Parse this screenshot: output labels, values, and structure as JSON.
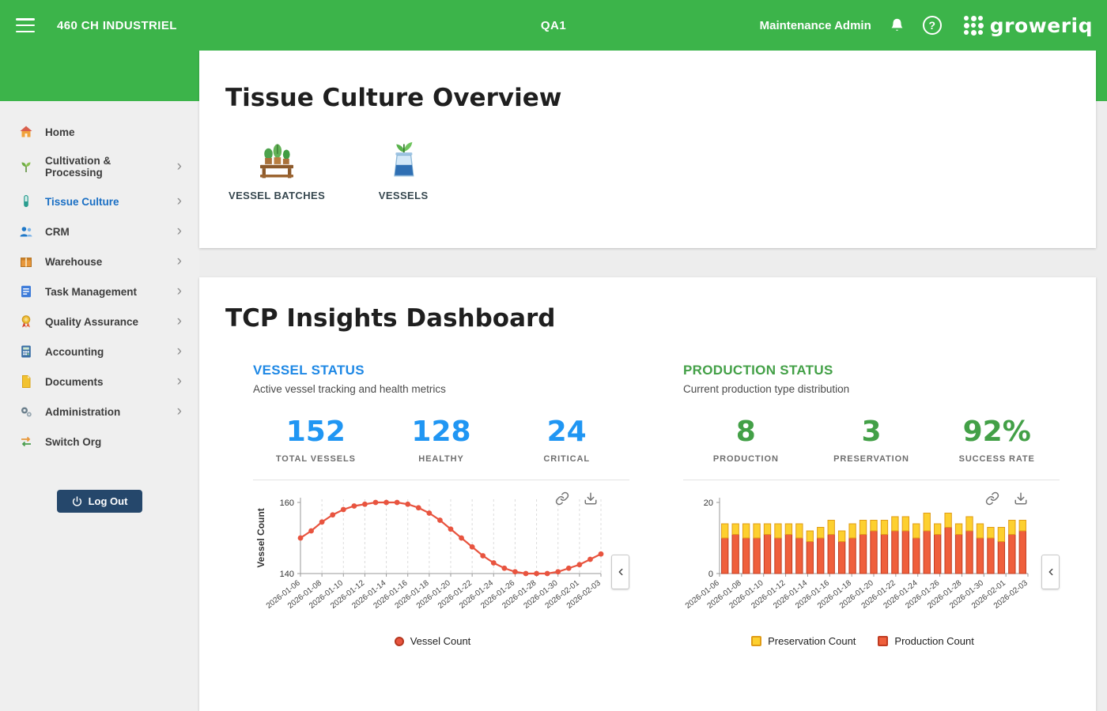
{
  "topbar": {
    "org": "460 CH INDUSTRIEL",
    "env": "QA1",
    "user": "Maintenance Admin",
    "help": "?",
    "logo_text": "groweriq"
  },
  "sidebar": {
    "items": [
      {
        "label": "Home",
        "icon": "home-icon",
        "expandable": false,
        "active": false
      },
      {
        "label": "Cultivation & Processing",
        "icon": "cultivation-icon",
        "expandable": true,
        "active": false
      },
      {
        "label": "Tissue Culture",
        "icon": "tissue-culture-icon",
        "expandable": true,
        "active": true
      },
      {
        "label": "CRM",
        "icon": "crm-icon",
        "expandable": true,
        "active": false
      },
      {
        "label": "Warehouse",
        "icon": "warehouse-icon",
        "expandable": true,
        "active": false
      },
      {
        "label": "Task Management",
        "icon": "task-management-icon",
        "expandable": true,
        "active": false
      },
      {
        "label": "Quality Assurance",
        "icon": "quality-assurance-icon",
        "expandable": true,
        "active": false
      },
      {
        "label": "Accounting",
        "icon": "accounting-icon",
        "expandable": true,
        "active": false
      },
      {
        "label": "Documents",
        "icon": "documents-icon",
        "expandable": true,
        "active": false
      },
      {
        "label": "Administration",
        "icon": "administration-icon",
        "expandable": true,
        "active": false
      },
      {
        "label": "Switch Org",
        "icon": "switch-org-icon",
        "expandable": false,
        "active": false
      }
    ],
    "logout_label": "Log Out"
  },
  "overview": {
    "title": "Tissue Culture Overview",
    "links": [
      {
        "label": "VESSEL BATCHES",
        "icon": "vessel-batches-icon"
      },
      {
        "label": "VESSELS",
        "icon": "vessels-icon"
      }
    ]
  },
  "insights": {
    "title": "TCP Insights Dashboard",
    "vessel_panel": {
      "heading": "VESSEL STATUS",
      "subtitle": "Active vessel tracking and health metrics",
      "accent": "#2096f3",
      "stats": [
        {
          "value": "152",
          "label": "TOTAL VESSELS"
        },
        {
          "value": "128",
          "label": "HEALTHY"
        },
        {
          "value": "24",
          "label": "CRITICAL"
        }
      ]
    },
    "production_panel": {
      "heading": "PRODUCTION STATUS",
      "subtitle": "Current production type distribution",
      "accent": "#43a047",
      "stats": [
        {
          "value": "8",
          "label": "PRODUCTION"
        },
        {
          "value": "3",
          "label": "PRESERVATION"
        },
        {
          "value": "92%",
          "label": "SUCCESS RATE"
        }
      ]
    }
  },
  "chart_data": [
    {
      "type": "line",
      "name": "vessel-count-trend",
      "ylabel": "Vessel Count",
      "ylim": [
        140,
        160
      ],
      "yticks": [
        140,
        160
      ],
      "grid": "vertical-dashed",
      "xtick_every": 2,
      "x": [
        "2026-01-06",
        "2026-01-07",
        "2026-01-08",
        "2026-01-09",
        "2026-01-10",
        "2026-01-11",
        "2026-01-12",
        "2026-01-13",
        "2026-01-14",
        "2026-01-15",
        "2026-01-16",
        "2026-01-17",
        "2026-01-18",
        "2026-01-19",
        "2026-01-20",
        "2026-01-21",
        "2026-01-22",
        "2026-01-23",
        "2026-01-24",
        "2026-01-25",
        "2026-01-26",
        "2026-01-27",
        "2026-01-28",
        "2026-01-29",
        "2026-01-30",
        "2026-01-31",
        "2026-02-01",
        "2026-02-02",
        "2026-02-03"
      ],
      "series": [
        {
          "name": "Vessel Count",
          "color": "#e8543f",
          "border": "#b5371f",
          "values": [
            150,
            152,
            154.5,
            156.5,
            158,
            159,
            159.5,
            160,
            160,
            160,
            159.5,
            158.5,
            157,
            155,
            152.5,
            150,
            147.5,
            145,
            143,
            141.5,
            140.5,
            140,
            140,
            140,
            140.5,
            141.5,
            142.5,
            144,
            145.5
          ]
        }
      ],
      "legend": [
        "Vessel Count"
      ],
      "legend_position": "bottom-center"
    },
    {
      "type": "stacked_bar",
      "name": "production-type-distribution",
      "ylabel": "",
      "ylim": [
        0,
        20
      ],
      "yticks": [
        0,
        20
      ],
      "xtick_every": 2,
      "x": [
        "2026-01-06",
        "2026-01-07",
        "2026-01-08",
        "2026-01-09",
        "2026-01-10",
        "2026-01-11",
        "2026-01-12",
        "2026-01-13",
        "2026-01-14",
        "2026-01-15",
        "2026-01-16",
        "2026-01-17",
        "2026-01-18",
        "2026-01-19",
        "2026-01-20",
        "2026-01-21",
        "2026-01-22",
        "2026-01-23",
        "2026-01-24",
        "2026-01-25",
        "2026-01-26",
        "2026-01-27",
        "2026-01-28",
        "2026-01-29",
        "2026-01-30",
        "2026-01-31",
        "2026-02-01",
        "2026-02-02",
        "2026-02-03"
      ],
      "series": [
        {
          "name": "Production Count",
          "color": "#ef5f3c",
          "border": "#c03c22",
          "stack_order": 0,
          "values": [
            10,
            11,
            10,
            10,
            11,
            10,
            11,
            10,
            9,
            10,
            11,
            9,
            10,
            11,
            12,
            11,
            12,
            12,
            10,
            12,
            11,
            13,
            11,
            12,
            10,
            10,
            9,
            11,
            12
          ]
        },
        {
          "name": "Preservation Count",
          "color": "#fdd02f",
          "border": "#e09c16",
          "stack_order": 1,
          "values": [
            4,
            3,
            4,
            4,
            3,
            4,
            3,
            4,
            3,
            3,
            4,
            3,
            4,
            4,
            3,
            4,
            4,
            4,
            4,
            5,
            3,
            4,
            3,
            4,
            4,
            3,
            4,
            4,
            3
          ]
        }
      ],
      "legend": [
        "Preservation Count",
        "Production Count"
      ],
      "legend_position": "bottom-center"
    }
  ]
}
